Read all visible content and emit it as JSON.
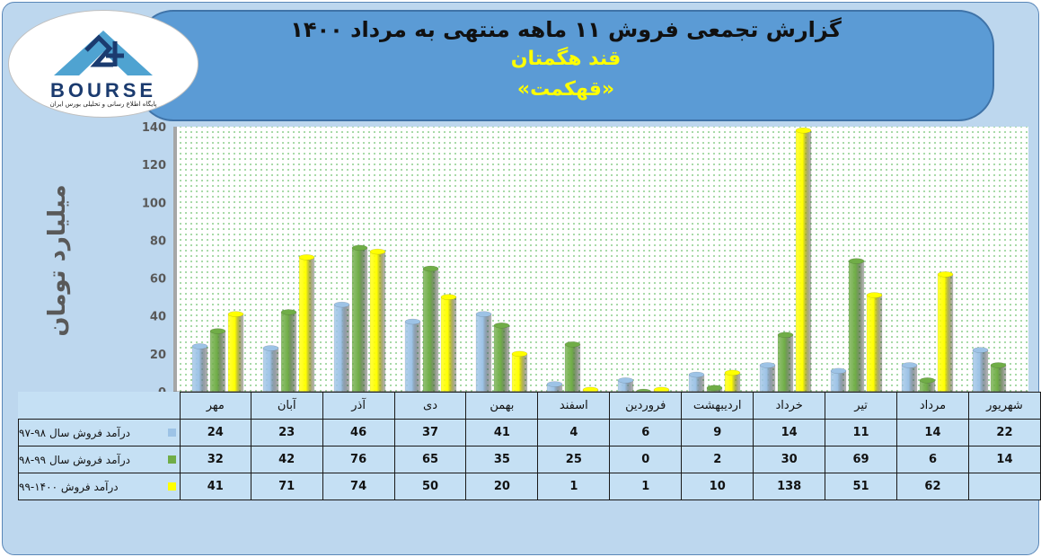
{
  "header": {
    "title": "گزارش تجمعی فروش ۱۱ ماهه منتهی به مرداد ۱۴۰۰",
    "company": "قند هگمتان",
    "symbol": "«قهکمت»"
  },
  "logo": {
    "word": "BOURSE",
    "subtitle": "پایگاه اطلاع رسانی و تحلیلی بورس ایران"
  },
  "chart_data": {
    "type": "bar",
    "ylabel": "میلیارد تومان",
    "ylim": [
      0,
      140
    ],
    "yticks": [
      0,
      20,
      40,
      60,
      80,
      100,
      120,
      140
    ],
    "categories": [
      "مهر",
      "آبان",
      "آذر",
      "دی",
      "بهمن",
      "اسفند",
      "فروردین",
      "اردیبهشت",
      "خرداد",
      "تیر",
      "مرداد",
      "شهریور"
    ],
    "series": [
      {
        "name": "درآمد فروش سال ۹۸-۹۷",
        "color": "#9dc3e6",
        "display": [
          "24",
          "23",
          "46",
          "37",
          "41",
          "4",
          "6",
          "9",
          "14",
          "11",
          "14",
          "22"
        ],
        "values": [
          24,
          23,
          46,
          37,
          41,
          4,
          6,
          9,
          14,
          11,
          14,
          22
        ]
      },
      {
        "name": "درآمد فروش سال ۹۹-۹۸",
        "color": "#70ad47",
        "display": [
          "32",
          "42",
          "76",
          "65",
          "35",
          "25",
          "0",
          "2",
          "30",
          "69",
          "6",
          "14"
        ],
        "values": [
          32,
          42,
          76,
          65,
          35,
          25,
          0,
          2,
          30,
          69,
          6,
          14
        ]
      },
      {
        "name": "درآمد فروش ۱۴۰۰-۹۹",
        "color": "#ffff00",
        "display": [
          "41",
          "71",
          "74",
          "50",
          "20",
          "1",
          "1",
          "10",
          "138",
          "51",
          "62",
          ""
        ],
        "values": [
          41,
          71,
          74,
          50,
          20,
          1,
          1,
          10,
          138,
          51,
          62,
          null
        ]
      }
    ]
  }
}
